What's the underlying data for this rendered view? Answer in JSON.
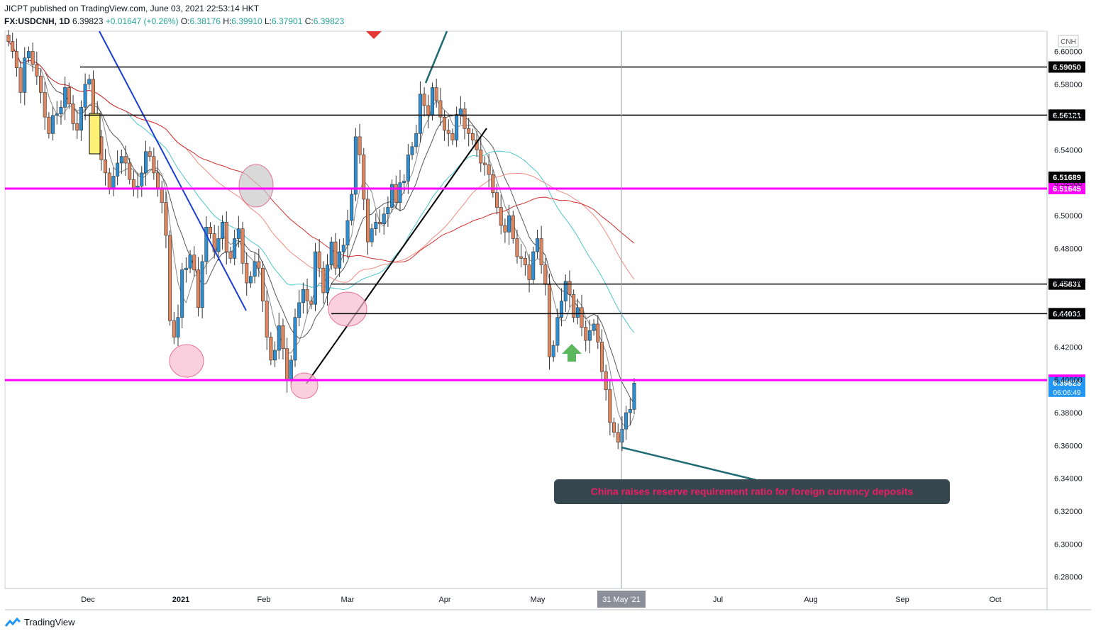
{
  "header": {
    "published": "JICPT published on TradingView.com, June 03, 2021 22:53:14 HKT",
    "symbol": "FX:USDCNH, 1D",
    "last": "6.39823",
    "change": "+0.01647 (+0.26%)",
    "o_label": "O:",
    "o_val": "6.38176",
    "h_label": "H:",
    "h_val": "6.39910",
    "l_label": "L:",
    "l_val": "6.37901",
    "c_label": "C:",
    "c_val": "6.39823"
  },
  "footer": {
    "brand": "TradingView",
    "logo_icon": "tradingview-logo-icon"
  },
  "colors": {
    "up": "#2d8fd1",
    "down": "#e0875f",
    "magenta": "#ff00ff",
    "black": "#000000",
    "axis": "#cfd3dc",
    "annotation_bg": "#37474f",
    "annotation_text": "#e91e63",
    "teal": "#1e6b73",
    "green_arrow": "#5cb85c",
    "ma_black": "#555555",
    "ma_gray": "#8a8a8a",
    "ma_cyan": "#4fc6cf",
    "ma_red": "#d32f2f",
    "ma_salmon": "#f28b82"
  },
  "chart_data": {
    "type": "candlestick",
    "currency_label": "CNH",
    "ylim": [
      6.27,
      6.61
    ],
    "y_ticks": [
      "6.60000",
      "6.58000",
      "6.56000",
      "6.54000",
      "6.52000",
      "6.50000",
      "6.48000",
      "6.46000",
      "6.44000",
      "6.42000",
      "6.40000",
      "6.38000",
      "6.36000",
      "6.34000",
      "6.32000",
      "6.30000",
      "6.28000"
    ],
    "x_ticks": [
      "Dec",
      "2021",
      "Feb",
      "Mar",
      "Apr",
      "May",
      "31 May '21",
      "Jul",
      "Aug",
      "Sep",
      "Oct"
    ],
    "horizontal_levels": [
      {
        "value": 6.5905,
        "label": "6.59050",
        "color": "black"
      },
      {
        "value": 6.56121,
        "label": "6.56121",
        "color": "black"
      },
      {
        "value": 6.51689,
        "label": "6.51689",
        "color": "black"
      },
      {
        "value": 6.51645,
        "label": "6.51645",
        "color": "magenta"
      },
      {
        "value": 6.45831,
        "label": "6.45831",
        "color": "black"
      },
      {
        "value": 6.44031,
        "label": "6.44031",
        "color": "black"
      },
      {
        "value": 6.3998,
        "label": "6.39980",
        "color": "magenta"
      }
    ],
    "last_price": {
      "value": 6.39823,
      "label": "6.39823",
      "countdown": "06:06:49"
    },
    "annotation": "China raises reserve requirement ratio for foreign currency deposits",
    "closes": [
      6.606,
      6.6,
      6.59,
      6.575,
      6.596,
      6.6,
      6.592,
      6.585,
      6.575,
      6.56,
      6.55,
      6.561,
      6.562,
      6.566,
      6.578,
      6.568,
      6.556,
      6.552,
      6.566,
      6.58,
      6.583,
      6.562,
      6.548,
      6.534,
      6.526,
      6.516,
      6.524,
      6.532,
      6.536,
      6.532,
      6.522,
      6.516,
      6.518,
      6.526,
      6.539,
      6.536,
      6.526,
      6.517,
      6.508,
      6.488,
      6.436,
      6.426,
      6.438,
      6.467,
      6.468,
      6.476,
      6.467,
      6.444,
      6.472,
      6.493,
      6.489,
      6.478,
      6.486,
      6.496,
      6.478,
      6.474,
      6.486,
      6.492,
      6.471,
      6.459,
      6.463,
      6.472,
      6.468,
      6.448,
      6.426,
      6.412,
      6.418,
      6.433,
      6.419,
      6.4,
      6.412,
      6.438,
      6.447,
      6.455,
      6.448,
      6.446,
      6.478,
      6.468,
      6.453,
      6.47,
      6.484,
      6.468,
      6.478,
      6.482,
      6.497,
      6.513,
      6.548,
      6.537,
      6.51,
      6.484,
      6.492,
      6.496,
      6.495,
      6.501,
      6.505,
      6.519,
      6.508,
      6.52,
      6.521,
      6.537,
      6.542,
      6.55,
      6.574,
      6.567,
      6.561,
      6.578,
      6.57,
      6.56,
      6.552,
      6.55,
      6.546,
      6.561,
      6.565,
      6.553,
      6.55,
      6.546,
      6.54,
      6.532,
      6.531,
      6.525,
      6.514,
      6.505,
      6.494,
      6.49,
      6.5,
      6.486,
      6.475,
      6.474,
      6.47,
      6.461,
      6.478,
      6.486,
      6.47,
      6.458,
      6.414,
      6.421,
      6.438,
      6.448,
      6.46,
      6.452,
      6.438,
      6.444,
      6.432,
      6.424,
      6.43,
      6.434,
      6.423,
      6.405,
      6.394,
      6.374,
      6.368,
      6.362,
      6.37,
      6.38,
      6.382,
      6.398
    ]
  }
}
